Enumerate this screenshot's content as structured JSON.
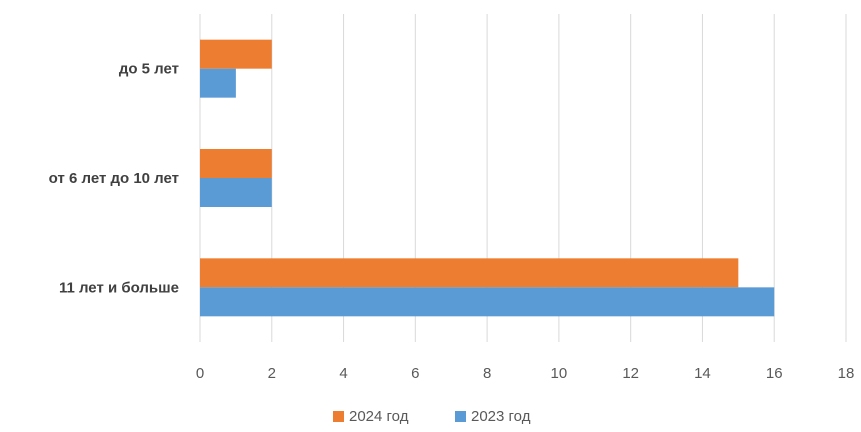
{
  "chart_data": {
    "type": "bar",
    "orientation": "horizontal",
    "categories": [
      "до 5 лет",
      "от 6 лет до 10 лет",
      "11 лет и больше"
    ],
    "series": [
      {
        "name": "2024 год",
        "color": "#ED7D31",
        "values": [
          2,
          2,
          15
        ]
      },
      {
        "name": "2023 год",
        "color": "#5B9BD5",
        "values": [
          1,
          2,
          16
        ]
      }
    ],
    "xlim": [
      0,
      18
    ],
    "xticks": [
      0,
      2,
      4,
      6,
      8,
      10,
      12,
      14,
      16,
      18
    ],
    "grid": true,
    "legend_position": "bottom",
    "title": "",
    "xlabel": "",
    "ylabel": ""
  }
}
